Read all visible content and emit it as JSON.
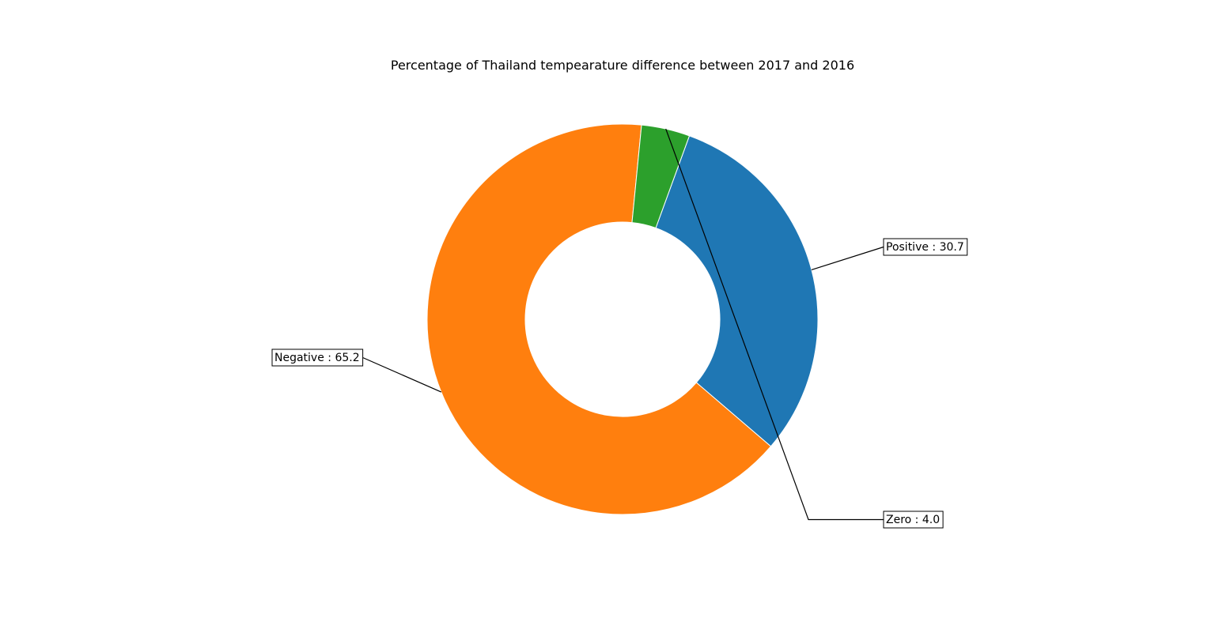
{
  "chart_data": {
    "type": "pie",
    "style": "donut",
    "title": "Percentage of Thailand tempearature difference between 2017 and 2016",
    "slices": [
      {
        "name": "Positive",
        "value": 30.7,
        "label": "Positive : 30.7",
        "color": "#1f77b4"
      },
      {
        "name": "Negative",
        "value": 65.2,
        "label": "Negative : 65.2",
        "color": "#ff7f0e"
      },
      {
        "name": "Zero",
        "value": 4.0,
        "label": "Zero : 4.0",
        "color": "#2ca02c"
      }
    ]
  }
}
